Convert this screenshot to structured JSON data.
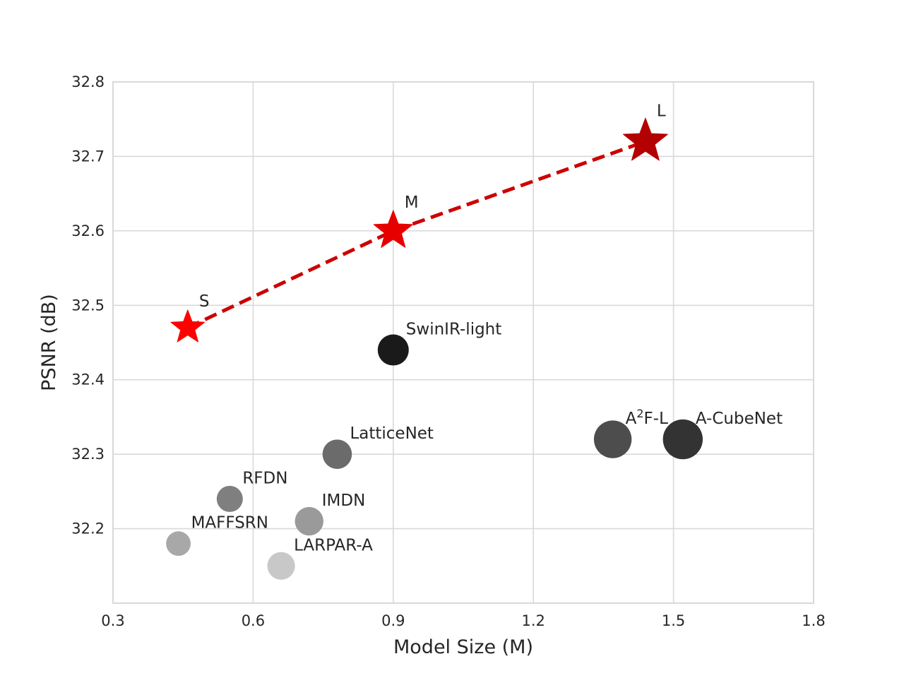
{
  "chart_data": {
    "type": "scatter",
    "title": "",
    "xlabel": "Model Size (M)",
    "ylabel": "PSNR (dB)",
    "xlim": [
      0.3,
      1.8
    ],
    "ylim": [
      32.1,
      32.8
    ],
    "xticks": [
      "0.3",
      "0.6",
      "0.9",
      "1.2",
      "1.5",
      "1.8"
    ],
    "yticks": [
      "32.2",
      "32.3",
      "32.4",
      "32.5",
      "32.6",
      "32.7",
      "32.8"
    ],
    "grid": true,
    "proposed_series": {
      "line_style": "dashed",
      "color": "#cc0000",
      "points": [
        {
          "label": "S",
          "x": 0.46,
          "y": 32.47,
          "color": "#ff0000"
        },
        {
          "label": "M",
          "x": 0.9,
          "y": 32.6,
          "color": "#e60000"
        },
        {
          "label": "L",
          "x": 1.44,
          "y": 32.72,
          "color": "#b30000"
        }
      ]
    },
    "methods": [
      {
        "label": "SwinIR-light",
        "x": 0.9,
        "y": 32.44,
        "color": "#1a1a1a"
      },
      {
        "label": "A",
        "label_sup": "2",
        "label_rest": "F-L",
        "x": 1.37,
        "y": 32.32,
        "color": "#4d4d4d"
      },
      {
        "label": "A-CubeNet",
        "x": 1.52,
        "y": 32.32,
        "color": "#333333"
      },
      {
        "label": "LatticeNet",
        "x": 0.78,
        "y": 32.3,
        "color": "#6b6b6b"
      },
      {
        "label": "RFDN",
        "x": 0.55,
        "y": 32.24,
        "color": "#7f7f7f"
      },
      {
        "label": "IMDN",
        "x": 0.72,
        "y": 32.21,
        "color": "#9a9a9a"
      },
      {
        "label": "MAFFSRN",
        "x": 0.44,
        "y": 32.18,
        "color": "#a8a8a8"
      },
      {
        "label": "LARPAR-A",
        "x": 0.66,
        "y": 32.15,
        "color": "#c8c8c8"
      }
    ]
  }
}
